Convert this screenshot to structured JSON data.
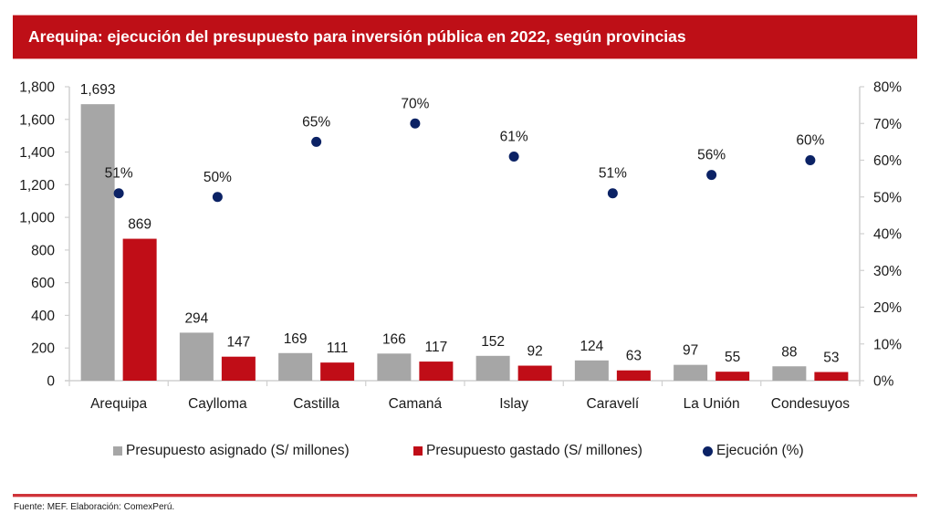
{
  "header": {
    "title": "Arequipa: ejecución del presupuesto para inversión pública en 2022, según provincias"
  },
  "chart_data": {
    "type": "bar",
    "title": "Arequipa: ejecución del presupuesto para inversión pública en 2022, según provincias",
    "xlabel": "",
    "ylabel": "",
    "categories": [
      "Arequipa",
      "Caylloma",
      "Castilla",
      "Camaná",
      "Islay",
      "Caravelí",
      "La Unión",
      "Condesuyos"
    ],
    "series": [
      {
        "name": "Presupuesto asignado (S/ millones)",
        "type": "bar",
        "axis": "left",
        "color": "#A6A6A6",
        "values": [
          1693,
          294,
          169,
          166,
          152,
          124,
          97,
          88
        ],
        "labels": [
          "1,693",
          "294",
          "169",
          "166",
          "152",
          "124",
          "97",
          "88"
        ]
      },
      {
        "name": "Presupuesto gastado (S/ millones)",
        "type": "bar",
        "axis": "left",
        "color": "#C00D17",
        "values": [
          869,
          147,
          111,
          117,
          92,
          63,
          55,
          53
        ],
        "labels": [
          "869",
          "147",
          "111",
          "117",
          "92",
          "63",
          "55",
          "53"
        ]
      },
      {
        "name": "Ejecución (%)",
        "type": "scatter",
        "axis": "right",
        "color": "#0B2265",
        "values": [
          51,
          50,
          65,
          70,
          61,
          51,
          56,
          60
        ],
        "labels": [
          "51%",
          "50%",
          "65%",
          "70%",
          "61%",
          "51%",
          "56%",
          "60%"
        ]
      }
    ],
    "ylim": [
      0,
      1800
    ],
    "y_ticks": [
      0,
      200,
      400,
      600,
      800,
      1000,
      1200,
      1400,
      1600,
      1800
    ],
    "y_tick_labels": [
      "0",
      "200",
      "400",
      "600",
      "800",
      "1,000",
      "1,200",
      "1,400",
      "1,600",
      "1,800"
    ],
    "y2lim": [
      0,
      80
    ],
    "y2_ticks": [
      0,
      10,
      20,
      30,
      40,
      50,
      60,
      70,
      80
    ],
    "y2_tick_labels": [
      "0%",
      "10%",
      "20%",
      "30%",
      "40%",
      "50%",
      "60%",
      "70%",
      "80%"
    ],
    "grid": false,
    "legend_position": "bottom"
  },
  "legend": [
    {
      "label": "Presupuesto asignado (S/ millones)",
      "color": "#A6A6A6",
      "shape": "square"
    },
    {
      "label": "Presupuesto gastado (S/ millones)",
      "color": "#C00D17",
      "shape": "square"
    },
    {
      "label": "Ejecución (%)",
      "color": "#0B2265",
      "shape": "circle"
    }
  ],
  "footer": {
    "source": "Fuente: MEF. Elaboración: ComexPerú."
  }
}
